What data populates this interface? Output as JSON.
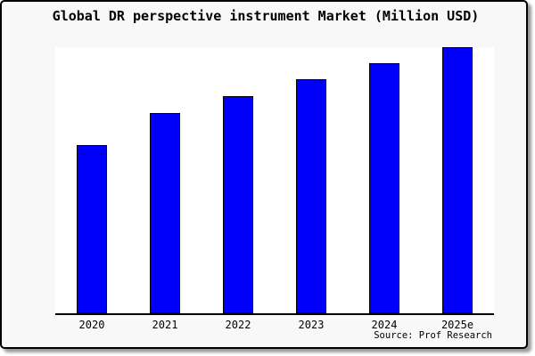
{
  "chart_data": {
    "type": "bar",
    "title": "Global DR perspective instrument Market (Million USD)",
    "categories": [
      "2020",
      "2021",
      "2022",
      "2023",
      "2024",
      "2025e"
    ],
    "values": [
      63.1,
      75.3,
      81.7,
      87.9,
      93.9,
      100
    ],
    "xlabel": "",
    "ylabel": "",
    "ylim": [
      0,
      100
    ],
    "grid": false,
    "legend": false,
    "y_axis_labels_visible": false,
    "bar_color": "#0000fa",
    "bar_border_color": "#000000"
  },
  "source": "Source: Prof Research",
  "colors": {
    "card_background": "#f8f8f8",
    "plot_background": "#ffffff",
    "frame_border": "#000000",
    "axis": "#000000",
    "shadow": "#999999"
  }
}
